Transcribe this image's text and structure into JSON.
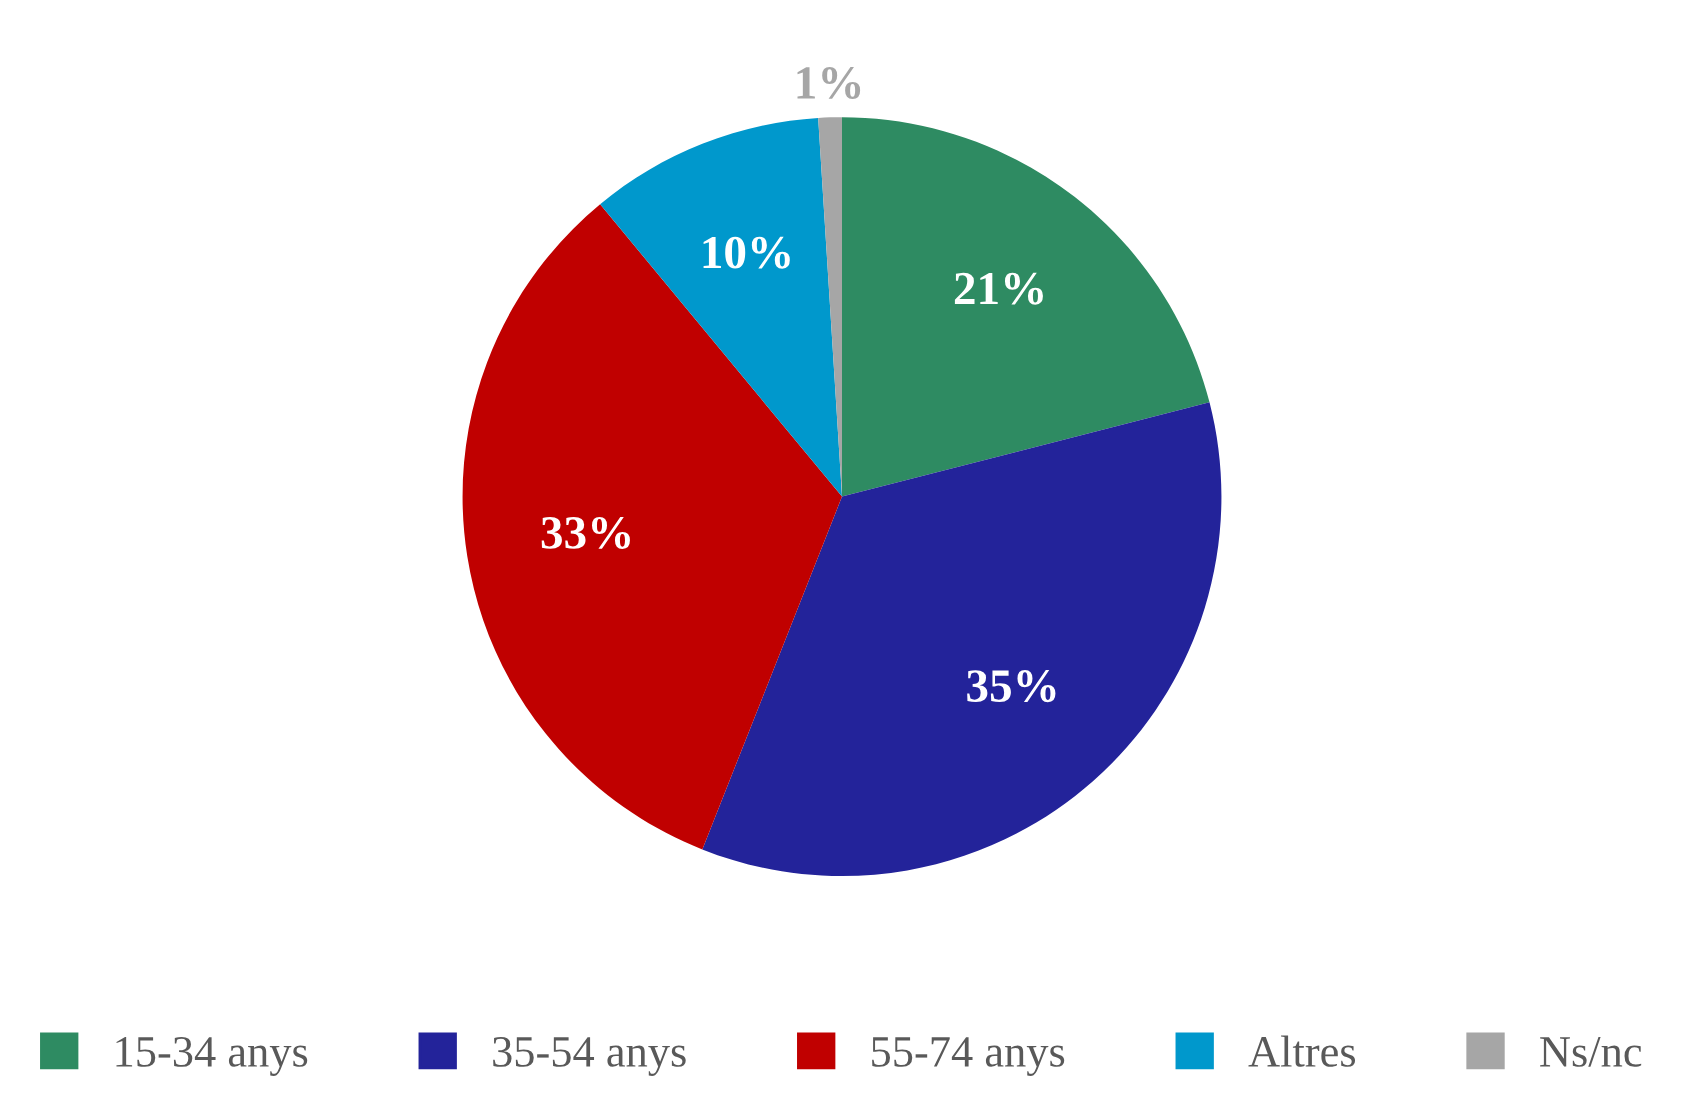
{
  "chart_data": {
    "type": "pie",
    "categories": [
      "15-34 anys",
      "35-54 anys",
      "55-74 anys",
      "Altres",
      "Ns/nc"
    ],
    "values": [
      21,
      35,
      33,
      10,
      1
    ],
    "colors": [
      "#2e8b62",
      "#23239a",
      "#c00000",
      "#0098cc",
      "#a6a6a6"
    ],
    "value_labels": [
      "21%",
      "35%",
      "33%",
      "10%",
      "1%"
    ],
    "legend": "bottom"
  }
}
